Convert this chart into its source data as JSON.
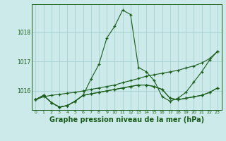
{
  "title": "Graphe pression niveau de la mer (hPa)",
  "background_color": "#cceaea",
  "grid_color": "#a8d0d0",
  "line_color": "#1a5c1a",
  "hours": [
    0,
    1,
    2,
    3,
    4,
    5,
    6,
    7,
    8,
    9,
    10,
    11,
    12,
    13,
    14,
    15,
    16,
    17,
    18,
    19,
    20,
    21,
    22,
    23
  ],
  "series_peak": [
    1015.7,
    1015.85,
    1015.6,
    1015.45,
    1015.5,
    1015.65,
    1015.85,
    1016.4,
    1016.9,
    1017.8,
    1018.2,
    1018.75,
    1018.6,
    1016.8,
    1016.65,
    1016.35,
    1015.8,
    1015.65,
    1015.75,
    1015.95,
    1016.3,
    1016.65,
    1017.05,
    1017.35
  ],
  "series_diag": [
    1015.7,
    1015.8,
    1015.85,
    1015.88,
    1015.92,
    1015.95,
    1016.0,
    1016.05,
    1016.1,
    1016.15,
    1016.2,
    1016.28,
    1016.35,
    1016.42,
    1016.5,
    1016.55,
    1016.6,
    1016.65,
    1016.7,
    1016.78,
    1016.85,
    1016.95,
    1017.1,
    1017.35
  ],
  "series_flat1": [
    1015.7,
    1015.85,
    1015.6,
    1015.45,
    1015.5,
    1015.65,
    1015.85,
    1015.9,
    1015.95,
    1016.0,
    1016.05,
    1016.1,
    1016.15,
    1016.2,
    1016.2,
    1016.15,
    1016.05,
    1015.75,
    1015.7,
    1015.75,
    1015.8,
    1015.85,
    1015.95,
    1016.1
  ],
  "series_flat2": [
    1015.7,
    1015.85,
    1015.6,
    1015.45,
    1015.5,
    1015.65,
    1015.85,
    1015.9,
    1015.95,
    1016.0,
    1016.05,
    1016.1,
    1016.15,
    1016.2,
    1016.2,
    1016.15,
    1016.05,
    1015.75,
    1015.7,
    1015.75,
    1015.8,
    1015.85,
    1015.95,
    1016.1
  ],
  "ylim": [
    1015.35,
    1018.95
  ],
  "yticks": [
    1016,
    1017,
    1018
  ],
  "title_fontsize": 7.0
}
